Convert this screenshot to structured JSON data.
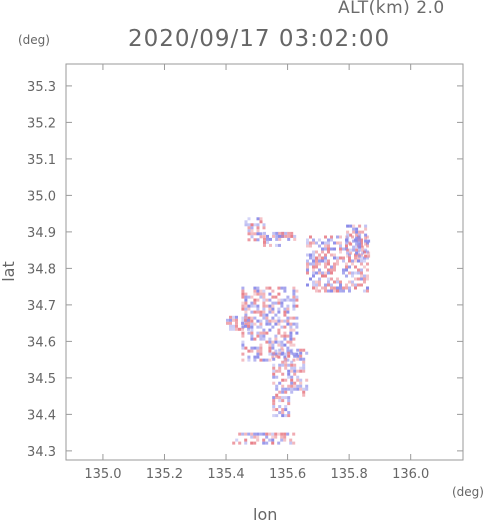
{
  "header": {
    "altitude_label": "ALT(km) 2.0",
    "timestamp": "2020/09/17 03:02:00"
  },
  "axes": {
    "x_unit": "(deg)",
    "y_unit": "(deg)",
    "x_label": "lon",
    "y_label": "lat",
    "x_ticks": [
      "135.0",
      "135.2",
      "135.4",
      "135.6",
      "135.8",
      "136.0"
    ],
    "y_ticks": [
      "34.3",
      "34.4",
      "34.5",
      "34.6",
      "34.7",
      "34.8",
      "34.9",
      "35.0",
      "35.1",
      "35.2",
      "35.3"
    ]
  },
  "chart_data": {
    "type": "heatmap",
    "xlim": [
      134.88,
      136.17
    ],
    "ylim": [
      34.275,
      35.36
    ],
    "x_ticks": [
      135.0,
      135.2,
      135.4,
      135.6,
      135.8,
      136.0
    ],
    "y_ticks": [
      34.3,
      34.4,
      34.5,
      34.6,
      34.7,
      34.8,
      34.9,
      35.0,
      35.1,
      35.2,
      35.3
    ],
    "grid": false,
    "colors": {
      "positive": "#e8808a",
      "negative": "#8a8ae8",
      "axis": "#9a9a9a"
    },
    "echo_regions": [
      {
        "lon": [
          135.46,
          135.52
        ],
        "lat": [
          34.88,
          34.94
        ]
      },
      {
        "lon": [
          135.52,
          135.58
        ],
        "lat": [
          34.86,
          34.9
        ]
      },
      {
        "lon": [
          135.55,
          135.62
        ],
        "lat": [
          34.88,
          34.9
        ]
      },
      {
        "lon": [
          135.66,
          135.86
        ],
        "lat": [
          34.74,
          34.89
        ]
      },
      {
        "lon": [
          135.79,
          135.86
        ],
        "lat": [
          34.83,
          34.92
        ]
      },
      {
        "lon": [
          135.45,
          135.63
        ],
        "lat": [
          34.55,
          34.75
        ]
      },
      {
        "lon": [
          135.55,
          135.66
        ],
        "lat": [
          34.45,
          34.58
        ]
      },
      {
        "lon": [
          135.55,
          135.6
        ],
        "lat": [
          34.4,
          34.45
        ]
      },
      {
        "lon": [
          135.4,
          135.47
        ],
        "lat": [
          34.63,
          34.67
        ]
      },
      {
        "lon": [
          135.42,
          135.62
        ],
        "lat": [
          34.32,
          34.35
        ]
      }
    ]
  }
}
